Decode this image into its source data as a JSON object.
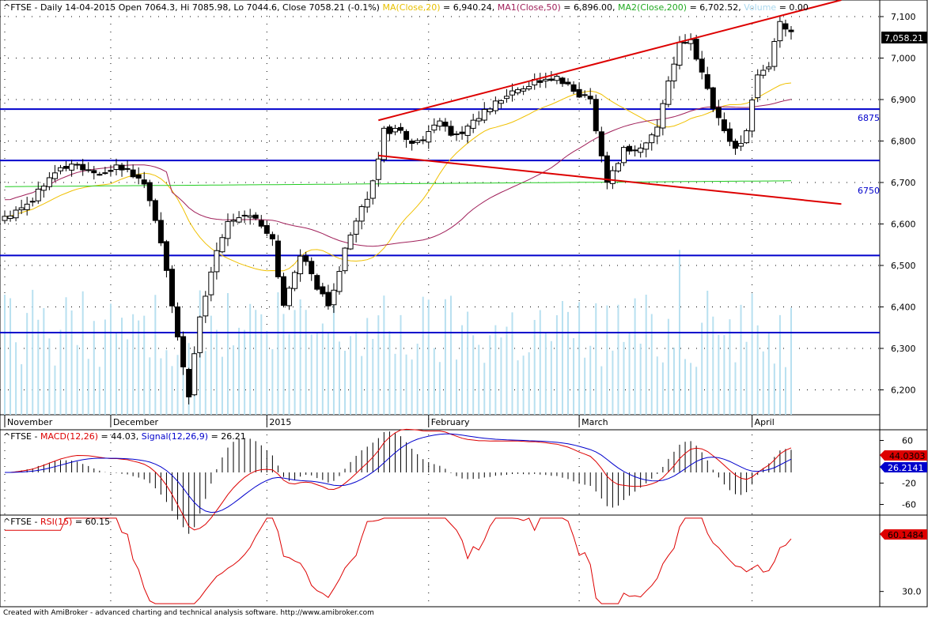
{
  "header": {
    "main": "^FTSE - Daily 14-04-2015 Open 7064.3, Hi 7085.98, Lo 7044.6, Close 7058.21 (-0.1%)",
    "ma20": "MA(Close,20)",
    "ma20_val": " = 6,940.24,",
    "ma50": "MA1(Close,50)",
    "ma50_val": " = 6,896.00,",
    "ma200": "MA2(Close,200)",
    "ma200_val": " = 6,702.52,",
    "vol": "Volume",
    "vol_val": " = 0.00"
  },
  "macd_header": {
    "prefix": "^FTSE - ",
    "macd": "MACD(12,26)",
    "macd_val": " = 44.03, ",
    "signal": "Signal(12,26,9)",
    "signal_val": " = 26.21"
  },
  "rsi_header": {
    "prefix": "^FTSE - ",
    "rsi": "RSI(15)",
    "rsi_val": " = 60.15"
  },
  "footer": "Created with AmiBroker - advanced charting and technical analysis software. http://www.amibroker.com",
  "labels": {
    "last_close": "7,058.21",
    "level_6875": "6875",
    "level_6750": "6750",
    "macd_box": "44.0303",
    "signal_box": "26.2141",
    "rsi_box": "60.1484"
  },
  "colors": {
    "up": "#ffffff",
    "down": "#000000",
    "ma20": "#f0c000",
    "ma50": "#a0205a",
    "ma200": "#22cc22",
    "volume": "#b8e0f0",
    "hline": "#0000cc",
    "trend": "#dd0000",
    "macd": "#dd0000",
    "signal": "#0000cc"
  },
  "chart_data": [
    {
      "type": "candlestick",
      "title": "^FTSE - Daily",
      "ylim": [
        6140,
        7140
      ],
      "y_ticks": [
        6200,
        6300,
        6400,
        6500,
        6600,
        6700,
        6800,
        6900,
        7000,
        7100
      ],
      "y_tick_labels": [
        "6,200",
        "6,300",
        "6,400",
        "6,500",
        "6,600",
        "6,700",
        "6,800",
        "6,900",
        "7,000",
        "7,100"
      ],
      "x_labels": [
        {
          "label": "November",
          "index": 0
        },
        {
          "label": "December",
          "index": 19
        },
        {
          "label": "2015",
          "index": 47
        },
        {
          "label": "February",
          "index": 76
        },
        {
          "label": "March",
          "index": 103
        },
        {
          "label": "April",
          "index": 134
        }
      ],
      "n": 142,
      "horizontal_levels": [
        6877,
        6753,
        6524,
        6338
      ],
      "trendlines": [
        {
          "from": [
            67,
            6850
          ],
          "to": [
            150,
            7140
          ]
        },
        {
          "from": [
            67,
            6765
          ],
          "to": [
            150,
            6648
          ]
        }
      ],
      "ohlc_anchors": [
        [
          0,
          6620
        ],
        [
          5,
          6660
        ],
        [
          8,
          6720
        ],
        [
          12,
          6745
        ],
        [
          18,
          6715
        ],
        [
          20,
          6745
        ],
        [
          25,
          6700
        ],
        [
          28,
          6560
        ],
        [
          31,
          6320
        ],
        [
          33,
          6190
        ],
        [
          35,
          6370
        ],
        [
          38,
          6540
        ],
        [
          40,
          6610
        ],
        [
          44,
          6625
        ],
        [
          48,
          6560
        ],
        [
          50,
          6400
        ],
        [
          53,
          6530
        ],
        [
          56,
          6450
        ],
        [
          58,
          6400
        ],
        [
          61,
          6540
        ],
        [
          63,
          6600
        ],
        [
          66,
          6700
        ],
        [
          68,
          6825
        ],
        [
          71,
          6830
        ],
        [
          73,
          6790
        ],
        [
          75,
          6800
        ],
        [
          78,
          6845
        ],
        [
          81,
          6810
        ],
        [
          85,
          6860
        ],
        [
          90,
          6910
        ],
        [
          95,
          6945
        ],
        [
          99,
          6950
        ],
        [
          102,
          6920
        ],
        [
          105,
          6900
        ],
        [
          108,
          6700
        ],
        [
          111,
          6780
        ],
        [
          114,
          6780
        ],
        [
          117,
          6830
        ],
        [
          119,
          6950
        ],
        [
          121,
          7030
        ],
        [
          123,
          7040
        ],
        [
          125,
          6970
        ],
        [
          127,
          6880
        ],
        [
          129,
          6830
        ],
        [
          131,
          6775
        ],
        [
          133,
          6830
        ],
        [
          135,
          6960
        ],
        [
          137,
          6980
        ],
        [
          139,
          7085
        ],
        [
          141,
          7058
        ]
      ],
      "volume_ylim": [
        0,
        10000000
      ]
    },
    {
      "type": "line",
      "title": "^FTSE - MACD(12,26)",
      "ylim": [
        -80,
        80
      ],
      "y_ticks": [
        60,
        -20,
        -60
      ],
      "y_tick_labels": [
        "60",
        "-20",
        "-60"
      ],
      "series": [
        {
          "name": "MACD(12,26)"
        },
        {
          "name": "Signal(12,26,9)"
        }
      ]
    },
    {
      "type": "line",
      "title": "^FTSE - RSI(15)",
      "ylim": [
        20,
        80
      ],
      "y_ticks": [
        30
      ],
      "y_tick_labels": [
        "30.0"
      ],
      "series": [
        {
          "name": "RSI(15)"
        }
      ]
    }
  ]
}
